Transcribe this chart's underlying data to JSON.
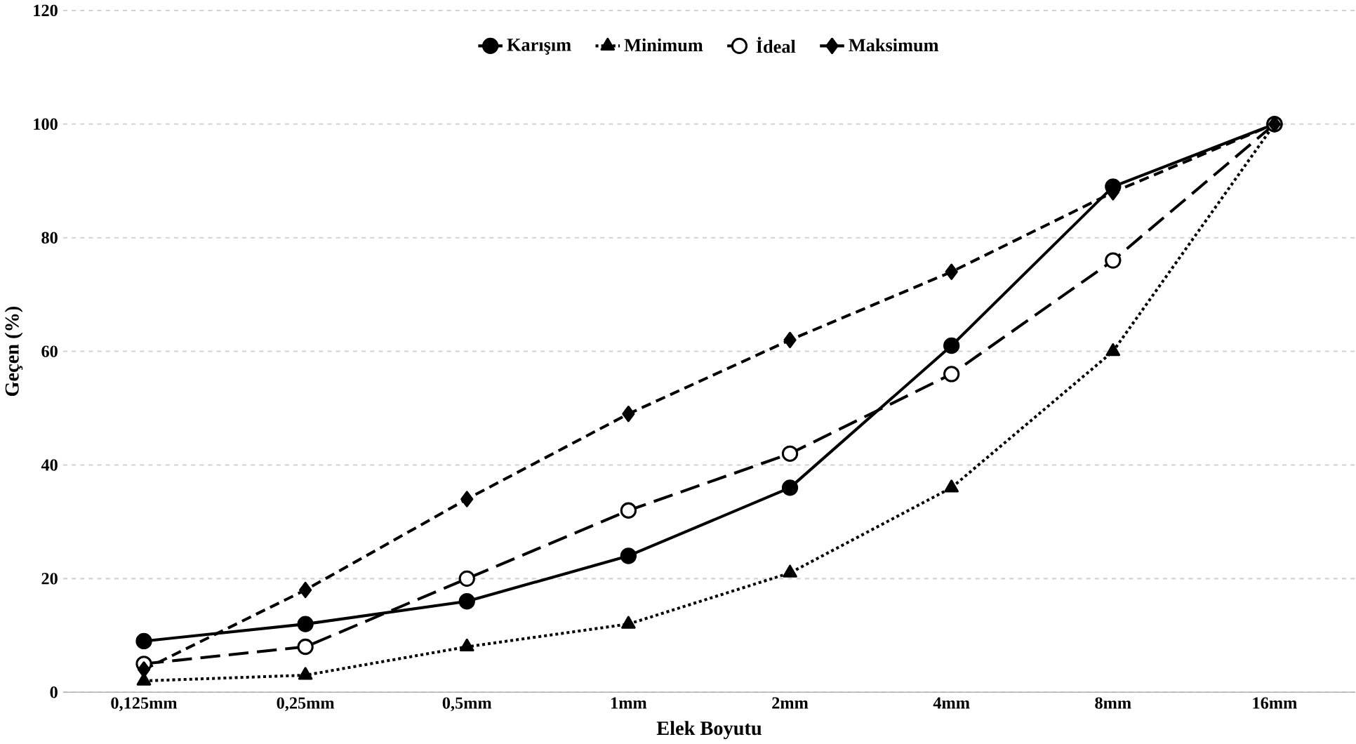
{
  "chart_data": {
    "type": "line",
    "xlabel": "Elek Boyutu",
    "ylabel": "Geçen (%)",
    "categories": [
      "0,125mm",
      "0,25mm",
      "0,5mm",
      "1mm",
      "2mm",
      "4mm",
      "8mm",
      "16mm"
    ],
    "ylim": [
      0,
      120
    ],
    "yticks": [
      0,
      20,
      40,
      60,
      80,
      100,
      120
    ],
    "grid": "y",
    "legend": "top",
    "series": [
      {
        "name": "Karışım",
        "color": "#000000",
        "marker": "circle",
        "line_style": "solid",
        "values": [
          9,
          12,
          16,
          24,
          36,
          61,
          89,
          100
        ]
      },
      {
        "name": "Minimum",
        "color": "#000000",
        "marker": "triangle",
        "line_style": "dotted",
        "values": [
          2,
          3,
          8,
          12,
          21,
          36,
          60,
          100
        ]
      },
      {
        "name": "İdeal",
        "color": "#000000",
        "marker": "open circle",
        "line_style": "long dashed",
        "values": [
          5,
          8,
          20,
          32,
          42,
          56,
          76,
          100
        ]
      },
      {
        "name": "Maksimum",
        "color": "#000000",
        "marker": "diamond",
        "line_style": "dashed",
        "values": [
          4,
          18,
          34,
          49,
          62,
          74,
          88,
          100
        ]
      }
    ]
  }
}
